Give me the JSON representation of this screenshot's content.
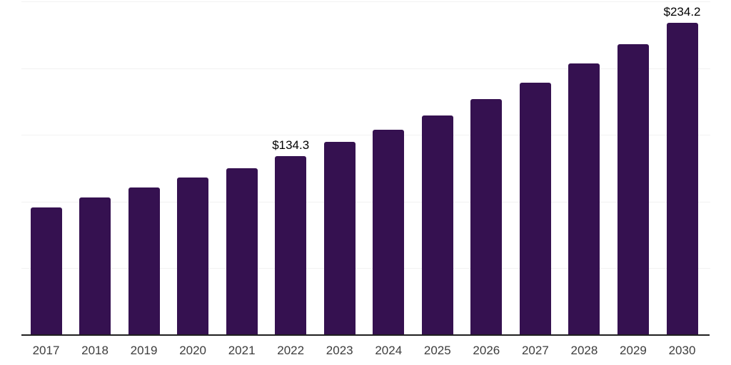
{
  "chart_data": {
    "type": "bar",
    "title": "",
    "xlabel": "",
    "ylabel": "",
    "categories": [
      "2017",
      "2018",
      "2019",
      "2020",
      "2021",
      "2022",
      "2023",
      "2024",
      "2025",
      "2026",
      "2027",
      "2028",
      "2029",
      "2030"
    ],
    "values": [
      95.5,
      103.0,
      110.4,
      117.9,
      124.8,
      134.3,
      144.5,
      154.0,
      164.7,
      176.9,
      189.2,
      203.3,
      217.9,
      234.2
    ],
    "data_labels": {
      "2022": "$134.3",
      "2030": "$234.2"
    },
    "ylim": [
      0,
      250
    ],
    "grid": true,
    "gridline_values": [
      50,
      100,
      150,
      200,
      250
    ],
    "legend_position": "none",
    "colors": {
      "bar": "#351150",
      "gridline": "#f2f2f2",
      "axis": "#1f1f1f",
      "tick_text": "#3d3d3d",
      "label_text": "#000000",
      "background": "#ffffff"
    }
  }
}
